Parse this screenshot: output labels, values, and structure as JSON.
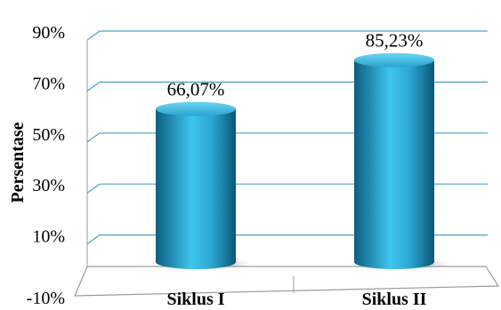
{
  "chart_data": {
    "type": "bar",
    "categories": [
      "Siklus I",
      "Siklus II"
    ],
    "values": [
      66.07,
      85.23
    ],
    "data_labels": [
      "66,07%",
      "85,23%"
    ],
    "ylabel": "Persentase",
    "xlabel": "",
    "ylim": [
      -10,
      90
    ],
    "yticks": [
      "-10%",
      "10%",
      "30%",
      "50%",
      "70%",
      "90%"
    ],
    "ytick_values": [
      -10,
      10,
      30,
      50,
      70,
      90
    ],
    "grid": true,
    "legend": "none",
    "colors": {
      "bar_light": "#3ec6ee",
      "bar_dark": "#0f6f95",
      "grid": "#4aa3c0",
      "axis": "#9a9a9a"
    }
  }
}
